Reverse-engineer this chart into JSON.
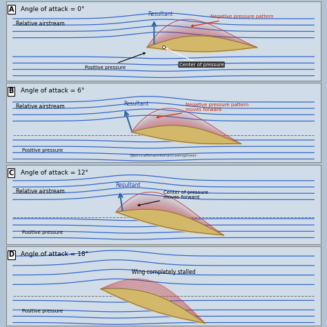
{
  "background_color": "#c8d8e8",
  "panel_bg": "#d0dde8",
  "border_color": "#888888",
  "panels": [
    {
      "label": "A",
      "title": "Angle of attack = 0°",
      "aoa": 0,
      "annotation1": "Resultant",
      "annotation2": "Negative pressure pattern",
      "annotation3": "Relative airstream",
      "annotation4": "Positive pressure",
      "annotation5": "Center of pressure",
      "show_center_box": true,
      "watermark": false
    },
    {
      "label": "B",
      "title": "Angle of attack = 6°",
      "aoa": 6,
      "annotation1": "Resultant",
      "annotation2": "Negative pressure pattern\nmoves forward",
      "annotation3": "Relative airstream",
      "annotation4": "Positive pressure",
      "annotation5": null,
      "show_center_box": false,
      "watermark": true
    },
    {
      "label": "C",
      "title": "Angle of attack = 12°",
      "aoa": 12,
      "annotation1": "Resultant",
      "annotation2": "Center of pressure\nmoves forward",
      "annotation3": "Relative airstream",
      "annotation4": "Positive pressure",
      "annotation5": null,
      "show_center_box": false,
      "watermark": false
    },
    {
      "label": "D",
      "title": "Angle of attack = 18°",
      "aoa": 18,
      "annotation1": null,
      "annotation2": "Wing completely stalled",
      "annotation3": null,
      "annotation4": "Positive pressure",
      "annotation5": null,
      "show_center_box": false,
      "watermark": false
    }
  ],
  "airstream_color": "#3366cc",
  "airstream_color_dark": "#1a3399",
  "negative_pressure_color": "#cc3333",
  "positive_pressure_color": "#e8d090",
  "aerofoil_color": "#d4b86a",
  "aerofoil_edge": "#8B7340",
  "resultant_color": "#336699",
  "annotation_color_neg": "#cc2200",
  "annotation_color_neutral": "#000000",
  "annotation_color_blue": "#2244aa"
}
